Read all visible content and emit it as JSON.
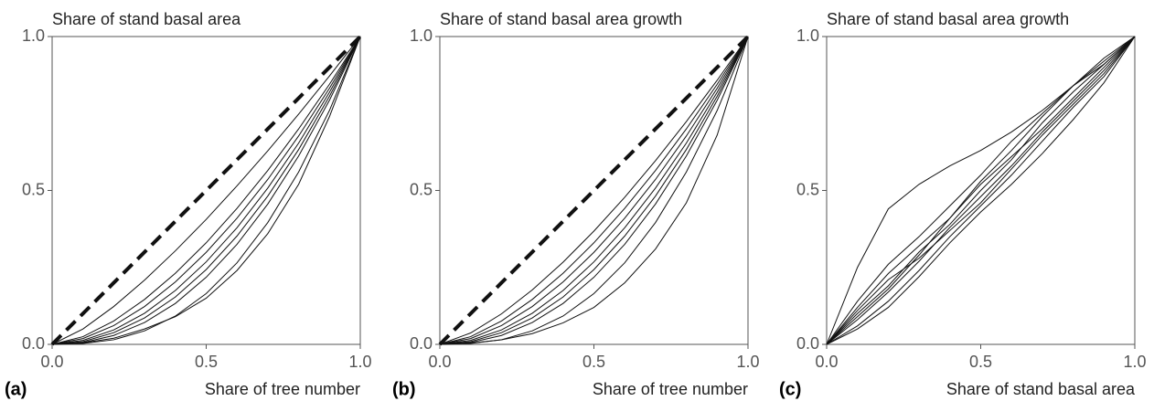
{
  "chart_data": [
    {
      "type": "line",
      "panel_label": "(a)",
      "title": "Share of stand basal area",
      "x_label": "Share of tree number",
      "color": "#111111",
      "x": [
        0,
        0.1,
        0.2,
        0.3,
        0.4,
        0.5,
        0.6,
        0.7,
        0.8,
        0.9,
        1
      ],
      "xlim": [
        0,
        1
      ],
      "ylim": [
        0,
        1
      ],
      "xticks": [
        {
          "value": 0,
          "label": "0.0"
        },
        0.5,
        {
          "value": 1,
          "label": "1.0"
        }
      ],
      "yticks": [
        {
          "value": 0,
          "label": "0.0"
        },
        0.5,
        {
          "value": 1,
          "label": "1.0"
        }
      ],
      "series": [
        {
          "values": [
            0,
            0.1,
            0.2,
            0.3,
            0.4,
            0.5,
            0.6,
            0.7,
            0.8,
            0.9,
            1
          ],
          "linestyle": "dashed"
        },
        {
          "values": [
            0,
            0.05,
            0.123,
            0.209,
            0.304,
            0.406,
            0.515,
            0.629,
            0.748,
            0.872,
            1
          ]
        },
        {
          "values": [
            0,
            0.025,
            0.076,
            0.146,
            0.231,
            0.33,
            0.442,
            0.565,
            0.7,
            0.845,
            1
          ]
        },
        {
          "values": [
            0,
            0.019,
            0.061,
            0.123,
            0.203,
            0.299,
            0.41,
            0.536,
            0.677,
            0.832,
            1
          ]
        },
        {
          "values": [
            0,
            0.013,
            0.047,
            0.101,
            0.175,
            0.268,
            0.379,
            0.508,
            0.654,
            0.819,
            1
          ]
        },
        {
          "values": [
            0,
            0.009,
            0.038,
            0.086,
            0.154,
            0.243,
            0.352,
            0.482,
            0.633,
            0.806,
            1
          ]
        },
        {
          "values": [
            0,
            0.006,
            0.029,
            0.071,
            0.133,
            0.218,
            0.325,
            0.456,
            0.612,
            0.793,
            1
          ]
        },
        {
          "values": [
            0,
            0.003,
            0.015,
            0.044,
            0.092,
            0.165,
            0.265,
            0.396,
            0.56,
            0.76,
            1
          ]
        },
        {
          "values": [
            0,
            0.005,
            0.02,
            0.05,
            0.09,
            0.15,
            0.24,
            0.36,
            0.52,
            0.74,
            1
          ]
        }
      ]
    },
    {
      "type": "line",
      "panel_label": "(b)",
      "title": "Share of stand basal area growth",
      "x_label": "Share of tree number",
      "color": "#111111",
      "x": [
        0,
        0.1,
        0.2,
        0.3,
        0.4,
        0.5,
        0.6,
        0.7,
        0.8,
        0.9,
        1
      ],
      "xlim": [
        0,
        1
      ],
      "ylim": [
        0,
        1
      ],
      "xticks": [
        {
          "value": 0,
          "label": "0.0"
        },
        0.5,
        {
          "value": 1,
          "label": "1.0"
        }
      ],
      "yticks": [
        {
          "value": 0,
          "label": "0.0"
        },
        0.5,
        {
          "value": 1,
          "label": "1.0"
        }
      ],
      "series": [
        {
          "values": [
            0,
            0.1,
            0.2,
            0.3,
            0.4,
            0.5,
            0.6,
            0.7,
            0.8,
            0.9,
            1
          ],
          "linestyle": "dashed"
        },
        {
          "values": [
            0,
            0.037,
            0.099,
            0.177,
            0.267,
            0.368,
            0.478,
            0.597,
            0.724,
            0.858,
            1
          ]
        },
        {
          "values": [
            0,
            0.025,
            0.076,
            0.146,
            0.231,
            0.33,
            0.442,
            0.565,
            0.7,
            0.845,
            1
          ]
        },
        {
          "values": [
            0,
            0.019,
            0.061,
            0.123,
            0.203,
            0.299,
            0.41,
            0.536,
            0.677,
            0.832,
            1
          ]
        },
        {
          "values": [
            0,
            0.013,
            0.047,
            0.101,
            0.175,
            0.268,
            0.379,
            0.508,
            0.654,
            0.819,
            1
          ]
        },
        {
          "values": [
            0,
            0.009,
            0.038,
            0.086,
            0.154,
            0.243,
            0.352,
            0.482,
            0.633,
            0.806,
            1
          ]
        },
        {
          "values": [
            0,
            0.006,
            0.029,
            0.071,
            0.133,
            0.218,
            0.325,
            0.456,
            0.612,
            0.793,
            1
          ]
        },
        {
          "values": [
            0,
            0.003,
            0.015,
            0.044,
            0.092,
            0.165,
            0.265,
            0.396,
            0.56,
            0.76,
            1
          ]
        },
        {
          "values": [
            0,
            0.004,
            0.015,
            0.035,
            0.07,
            0.12,
            0.2,
            0.31,
            0.46,
            0.68,
            1
          ]
        }
      ]
    },
    {
      "type": "line",
      "panel_label": "(c)",
      "title": "Share of stand basal area growth",
      "x_label": "Share of stand basal area",
      "color": "#111111",
      "x": [
        0,
        0.1,
        0.2,
        0.3,
        0.4,
        0.5,
        0.6,
        0.7,
        0.8,
        0.9,
        1
      ],
      "xlim": [
        0,
        1
      ],
      "ylim": [
        0,
        1
      ],
      "xticks": [
        {
          "value": 0,
          "label": "0.0"
        },
        0.5,
        {
          "value": 1,
          "label": "1.0"
        }
      ],
      "yticks": [
        {
          "value": 0,
          "label": "0.0"
        },
        0.5,
        {
          "value": 1,
          "label": "1.0"
        }
      ],
      "series": [
        {
          "values": [
            0,
            0.25,
            0.44,
            0.52,
            0.58,
            0.63,
            0.69,
            0.76,
            0.84,
            0.92,
            1
          ]
        },
        {
          "values": [
            0,
            0.12,
            0.23,
            0.32,
            0.41,
            0.52,
            0.61,
            0.7,
            0.8,
            0.9,
            1
          ]
        },
        {
          "values": [
            0,
            0.08,
            0.17,
            0.27,
            0.38,
            0.48,
            0.58,
            0.69,
            0.79,
            0.89,
            1
          ]
        },
        {
          "values": [
            0,
            0.06,
            0.14,
            0.24,
            0.35,
            0.45,
            0.55,
            0.66,
            0.77,
            0.87,
            1
          ]
        },
        {
          "values": [
            0,
            0.1,
            0.19,
            0.3,
            0.39,
            0.5,
            0.6,
            0.72,
            0.82,
            0.91,
            1
          ]
        },
        {
          "values": [
            0,
            0.14,
            0.26,
            0.35,
            0.45,
            0.55,
            0.66,
            0.75,
            0.84,
            0.93,
            1
          ]
        },
        {
          "values": [
            0,
            0.05,
            0.12,
            0.22,
            0.33,
            0.43,
            0.52,
            0.62,
            0.73,
            0.85,
            1
          ]
        },
        {
          "values": [
            0,
            0.11,
            0.21,
            0.28,
            0.37,
            0.46,
            0.57,
            0.68,
            0.78,
            0.88,
            1
          ]
        },
        {
          "values": [
            0,
            0.09,
            0.18,
            0.29,
            0.41,
            0.53,
            0.63,
            0.74,
            0.84,
            0.91,
            1
          ]
        }
      ]
    }
  ]
}
